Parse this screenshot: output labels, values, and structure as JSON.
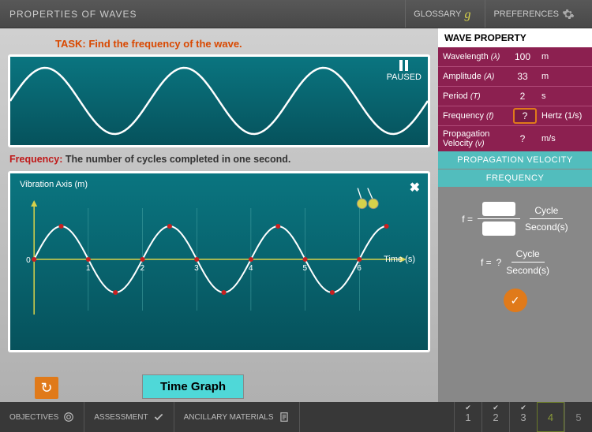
{
  "header": {
    "title": "PROPERTIES OF WAVES",
    "glossary": "GLOSSARY",
    "preferences": "PREFERENCES"
  },
  "task": "TASK: Find the frequency of the wave.",
  "wave_display": {
    "paused_label": "PAUSED",
    "sine": {
      "amplitude": 42,
      "cycles": 3,
      "stroke": "#ffffff",
      "stroke_width": 2.5,
      "bg_top": "#0a7580",
      "bg_bottom": "#06525c"
    }
  },
  "definition": {
    "term": "Frequency:",
    "text": "The number of cycles completed in one second."
  },
  "graph": {
    "ylabel": "Vibration Axis (m)",
    "xlabel": "Time (s)",
    "close": "✖",
    "sine": {
      "amplitude": 42,
      "cycles": 3.4,
      "stroke": "#ffffff",
      "stroke_width": 2
    },
    "axis_color": "#d7d24a",
    "grid_color": "#4aa6a6",
    "dot_color": "#c82020",
    "xticks": [
      0,
      1,
      2,
      3,
      4,
      5,
      6
    ],
    "bg_top": "#0a7580",
    "bg_bottom": "#06525c"
  },
  "reset_icon": "↻",
  "time_graph_btn": "Time Graph",
  "properties": {
    "header": "WAVE PROPERTY",
    "rows": [
      {
        "label": "Wavelength",
        "sym": "(λ)",
        "value": "100",
        "unit": "m"
      },
      {
        "label": "Amplitude",
        "sym": "(A)",
        "value": "33",
        "unit": "m"
      },
      {
        "label": "Period",
        "sym": "(T)",
        "value": "2",
        "unit": "s"
      },
      {
        "label": "Frequency",
        "sym": "(f)",
        "value": "?",
        "unit": "Hertz (1/s)",
        "highlight": true
      },
      {
        "label": "Propagation Velocity",
        "sym": "(v)",
        "value": "?",
        "unit": "m/s"
      }
    ],
    "bg": "#8c2050"
  },
  "tabs": {
    "propagation": "PROPAGATION VELOCITY",
    "frequency": "FREQUENCY"
  },
  "formula": {
    "lhs": "f  =",
    "cycle": "Cycle",
    "seconds": "Second(s)",
    "result": "?",
    "check": "✓"
  },
  "footer": {
    "objectives": "OBJECTIVES",
    "assessment": "ASSESSMENT",
    "ancillary": "ANCILLARY MATERIALS",
    "steps": [
      {
        "n": "1",
        "done": true
      },
      {
        "n": "2",
        "done": true
      },
      {
        "n": "3",
        "done": true
      },
      {
        "n": "4",
        "active": true
      },
      {
        "n": "5"
      }
    ]
  }
}
